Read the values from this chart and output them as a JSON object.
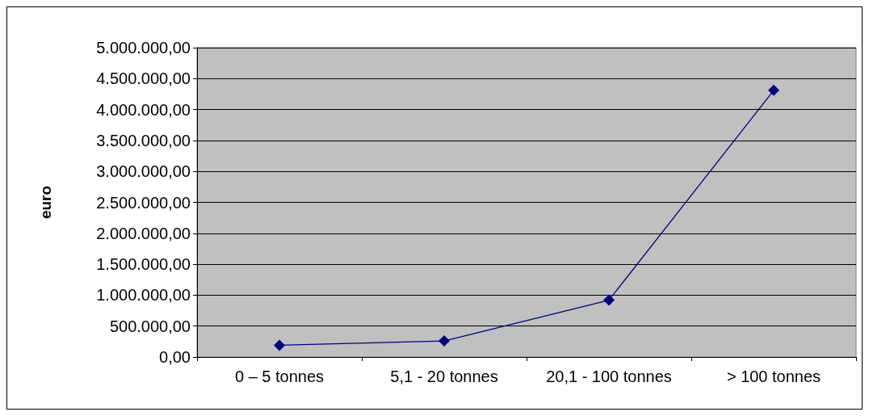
{
  "chart_data": {
    "type": "line",
    "ylabel": "euro",
    "categories": [
      "0 – 5 tonnes",
      "5,1 - 20 tonnes",
      "20,1 - 100 tonnes",
      "> 100 tonnes"
    ],
    "series": [
      {
        "color": "#000080",
        "values": [
          190000,
          260000,
          920000,
          4310000
        ]
      }
    ],
    "ylim": [
      0,
      5000000
    ],
    "yticks": [
      {
        "value": 0,
        "label": "0,00"
      },
      {
        "value": 500000,
        "label": "500.000,00"
      },
      {
        "value": 1000000,
        "label": "1.000.000,00"
      },
      {
        "value": 1500000,
        "label": "1.500.000,00"
      },
      {
        "value": 2000000,
        "label": "2.000.000,00"
      },
      {
        "value": 2500000,
        "label": "2.500.000,00"
      },
      {
        "value": 3000000,
        "label": "3.000.000,00"
      },
      {
        "value": 3500000,
        "label": "3.500.000,00"
      },
      {
        "value": 4000000,
        "label": "4.000.000,00"
      },
      {
        "value": 4500000,
        "label": "4.500.000,00"
      },
      {
        "value": 5000000,
        "label": "5.000.000,00"
      }
    ],
    "grid": "y",
    "marker": "diamond",
    "line_style": "solid"
  }
}
